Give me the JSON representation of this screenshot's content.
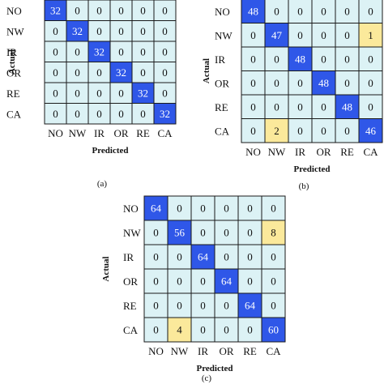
{
  "colors": {
    "diagonal": "#2f57e8",
    "misclassified": "#fbe99b",
    "zero": "#dcf2f5",
    "grid_line": "#1a1a1a",
    "diagonal_text": "#ffffff",
    "cell_text": "#111111"
  },
  "chart_data": [
    {
      "type": "heatmap",
      "caption": "(a)",
      "ylabel": "Actual",
      "xlabel": "Predicted",
      "rows": [
        "NO",
        "NW",
        "IR",
        "OR",
        "RE",
        "CA"
      ],
      "cols": [
        "NO",
        "NW",
        "IR",
        "OR",
        "RE",
        "CA"
      ],
      "values": [
        [
          32,
          0,
          0,
          0,
          0,
          0
        ],
        [
          0,
          32,
          0,
          0,
          0,
          0
        ],
        [
          0,
          0,
          32,
          0,
          0,
          0
        ],
        [
          0,
          0,
          0,
          32,
          0,
          0
        ],
        [
          0,
          0,
          0,
          0,
          32,
          0
        ],
        [
          0,
          0,
          0,
          0,
          0,
          32
        ]
      ]
    },
    {
      "type": "heatmap",
      "caption": "(b)",
      "ylabel": "Actual",
      "xlabel": "Predicted",
      "rows": [
        "NO",
        "NW",
        "IR",
        "OR",
        "RE",
        "CA"
      ],
      "cols": [
        "NO",
        "NW",
        "IR",
        "OR",
        "RE",
        "CA"
      ],
      "values": [
        [
          48,
          0,
          0,
          0,
          0,
          0
        ],
        [
          0,
          47,
          0,
          0,
          0,
          1
        ],
        [
          0,
          0,
          48,
          0,
          0,
          0
        ],
        [
          0,
          0,
          0,
          48,
          0,
          0
        ],
        [
          0,
          0,
          0,
          0,
          48,
          0
        ],
        [
          0,
          2,
          0,
          0,
          0,
          46
        ]
      ]
    },
    {
      "type": "heatmap",
      "caption": "(c)",
      "ylabel": "Actual",
      "xlabel": "Predicted",
      "rows": [
        "NO",
        "NW",
        "IR",
        "OR",
        "RE",
        "CA"
      ],
      "cols": [
        "NO",
        "NW",
        "IR",
        "OR",
        "RE",
        "CA"
      ],
      "values": [
        [
          64,
          0,
          0,
          0,
          0,
          0
        ],
        [
          0,
          56,
          0,
          0,
          0,
          8
        ],
        [
          0,
          0,
          64,
          0,
          0,
          0
        ],
        [
          0,
          0,
          0,
          64,
          0,
          0
        ],
        [
          0,
          0,
          0,
          0,
          64,
          0
        ],
        [
          0,
          4,
          0,
          0,
          0,
          60
        ]
      ]
    }
  ]
}
